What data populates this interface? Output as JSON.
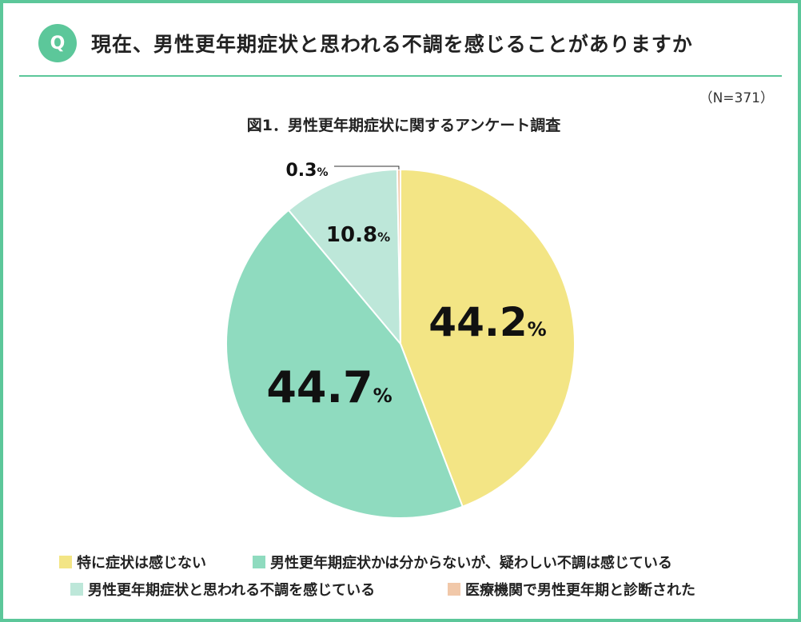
{
  "header": {
    "badge": "Q",
    "question": "現在、男性更年期症状と思われる不調を感じることがありますか"
  },
  "sample_size": "（N=371）",
  "chart_data": {
    "type": "pie",
    "title": "図1．男性更年期症状に関するアンケート調査",
    "unit": "%",
    "slices": [
      {
        "label": "特に症状は感じない",
        "value": 44.2,
        "value_text": "44.2",
        "color": "#f3e585"
      },
      {
        "label": "男性更年期症状かは分からないが、疑わしい不調は感じている",
        "value": 44.7,
        "value_text": "44.7",
        "color": "#8fdbbf"
      },
      {
        "label": "男性更年期症状と思われる不調を感じている",
        "value": 10.8,
        "value_text": "10.8",
        "color": "#bde7d9"
      },
      {
        "label": "医療機関で男性更年期と診断された",
        "value": 0.3,
        "value_text": "0.3",
        "color": "#f1c8a9"
      }
    ]
  }
}
